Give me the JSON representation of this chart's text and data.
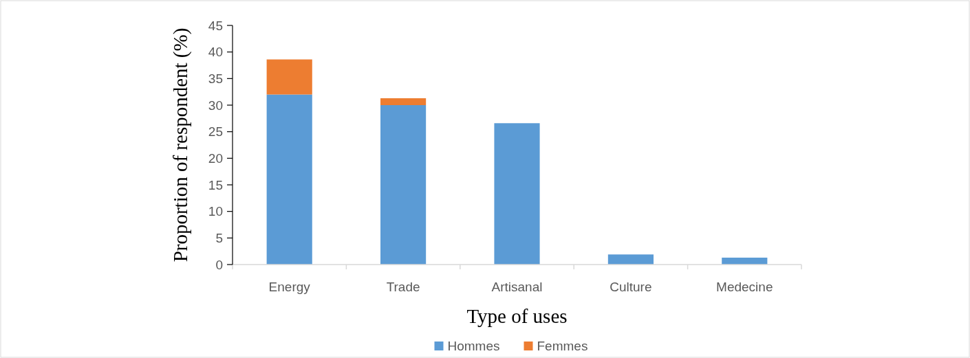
{
  "chart_data": {
    "type": "bar",
    "stacked": true,
    "xlabel": "Type of uses",
    "ylabel": "Proportion of respondent (%)",
    "categories": [
      "Energy",
      "Trade",
      "Artisanal",
      "Culture",
      "Medecine"
    ],
    "series": [
      {
        "name": "Hommes",
        "color": "#5b9bd5",
        "values": [
          32,
          30,
          26.6,
          1.9,
          1.3
        ]
      },
      {
        "name": "Femmes",
        "color": "#ed7d31",
        "values": [
          6.6,
          1.3,
          null,
          null,
          null
        ]
      }
    ],
    "ylim": [
      0,
      45
    ],
    "yticks": [
      0,
      5,
      10,
      15,
      20,
      25,
      30,
      35,
      40,
      45
    ],
    "grid": false,
    "legend": "bottom"
  }
}
